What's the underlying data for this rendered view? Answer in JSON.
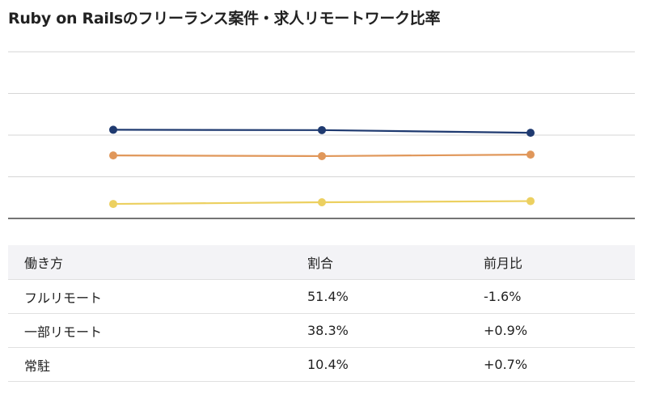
{
  "title": "Ruby on Railsのフリーランス案件・求人リモートワーク比率",
  "chart_data": {
    "type": "line",
    "x": [
      "",
      "",
      ""
    ],
    "ylim": [
      0,
      100
    ],
    "grid": true,
    "series": [
      {
        "values": [
          53.2,
          53.0,
          51.4
        ],
        "color": "#1f3a70"
      },
      {
        "values": [
          37.8,
          37.4,
          38.3
        ],
        "color": "#e0975a"
      },
      {
        "values": [
          8.7,
          9.7,
          10.4
        ],
        "color": "#ecd060"
      }
    ]
  },
  "table": {
    "headers": [
      "働き方",
      "割合",
      "前月比"
    ],
    "rows": [
      [
        "フルリモート",
        "51.4%",
        "-1.6%"
      ],
      [
        "一部リモート",
        "38.3%",
        "+0.9%"
      ],
      [
        "常駐",
        "10.4%",
        "+0.7%"
      ]
    ]
  }
}
